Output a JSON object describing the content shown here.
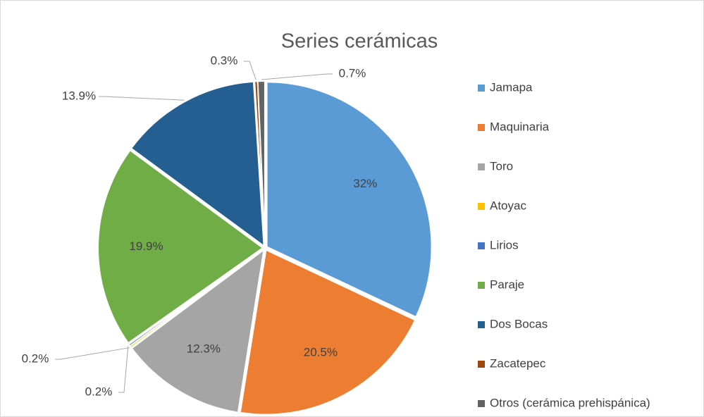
{
  "chart_data": {
    "type": "pie",
    "title": "Series cerámicas",
    "categories": [
      "Jamapa",
      "Maquinaria",
      "Toro",
      "Atoyac",
      "Lirios",
      "Paraje",
      "Dos Bocas",
      "Zacatepec",
      "Otros (cerámica prehispánica)"
    ],
    "values": [
      32,
      20.5,
      12.3,
      0.2,
      0.2,
      19.9,
      13.9,
      0.3,
      0.7
    ],
    "value_labels": [
      "32%",
      "20.5%",
      "12.3%",
      "0.2%",
      "0.2%",
      "19.9%",
      "13.9%",
      "0.3%",
      "0.7%"
    ],
    "colors": [
      "#5b9bd5",
      "#ed7d31",
      "#a5a5a5",
      "#ffc000",
      "#4472c4",
      "#70ad47",
      "#255e91",
      "#9e480e",
      "#636363"
    ],
    "legend": "right"
  }
}
